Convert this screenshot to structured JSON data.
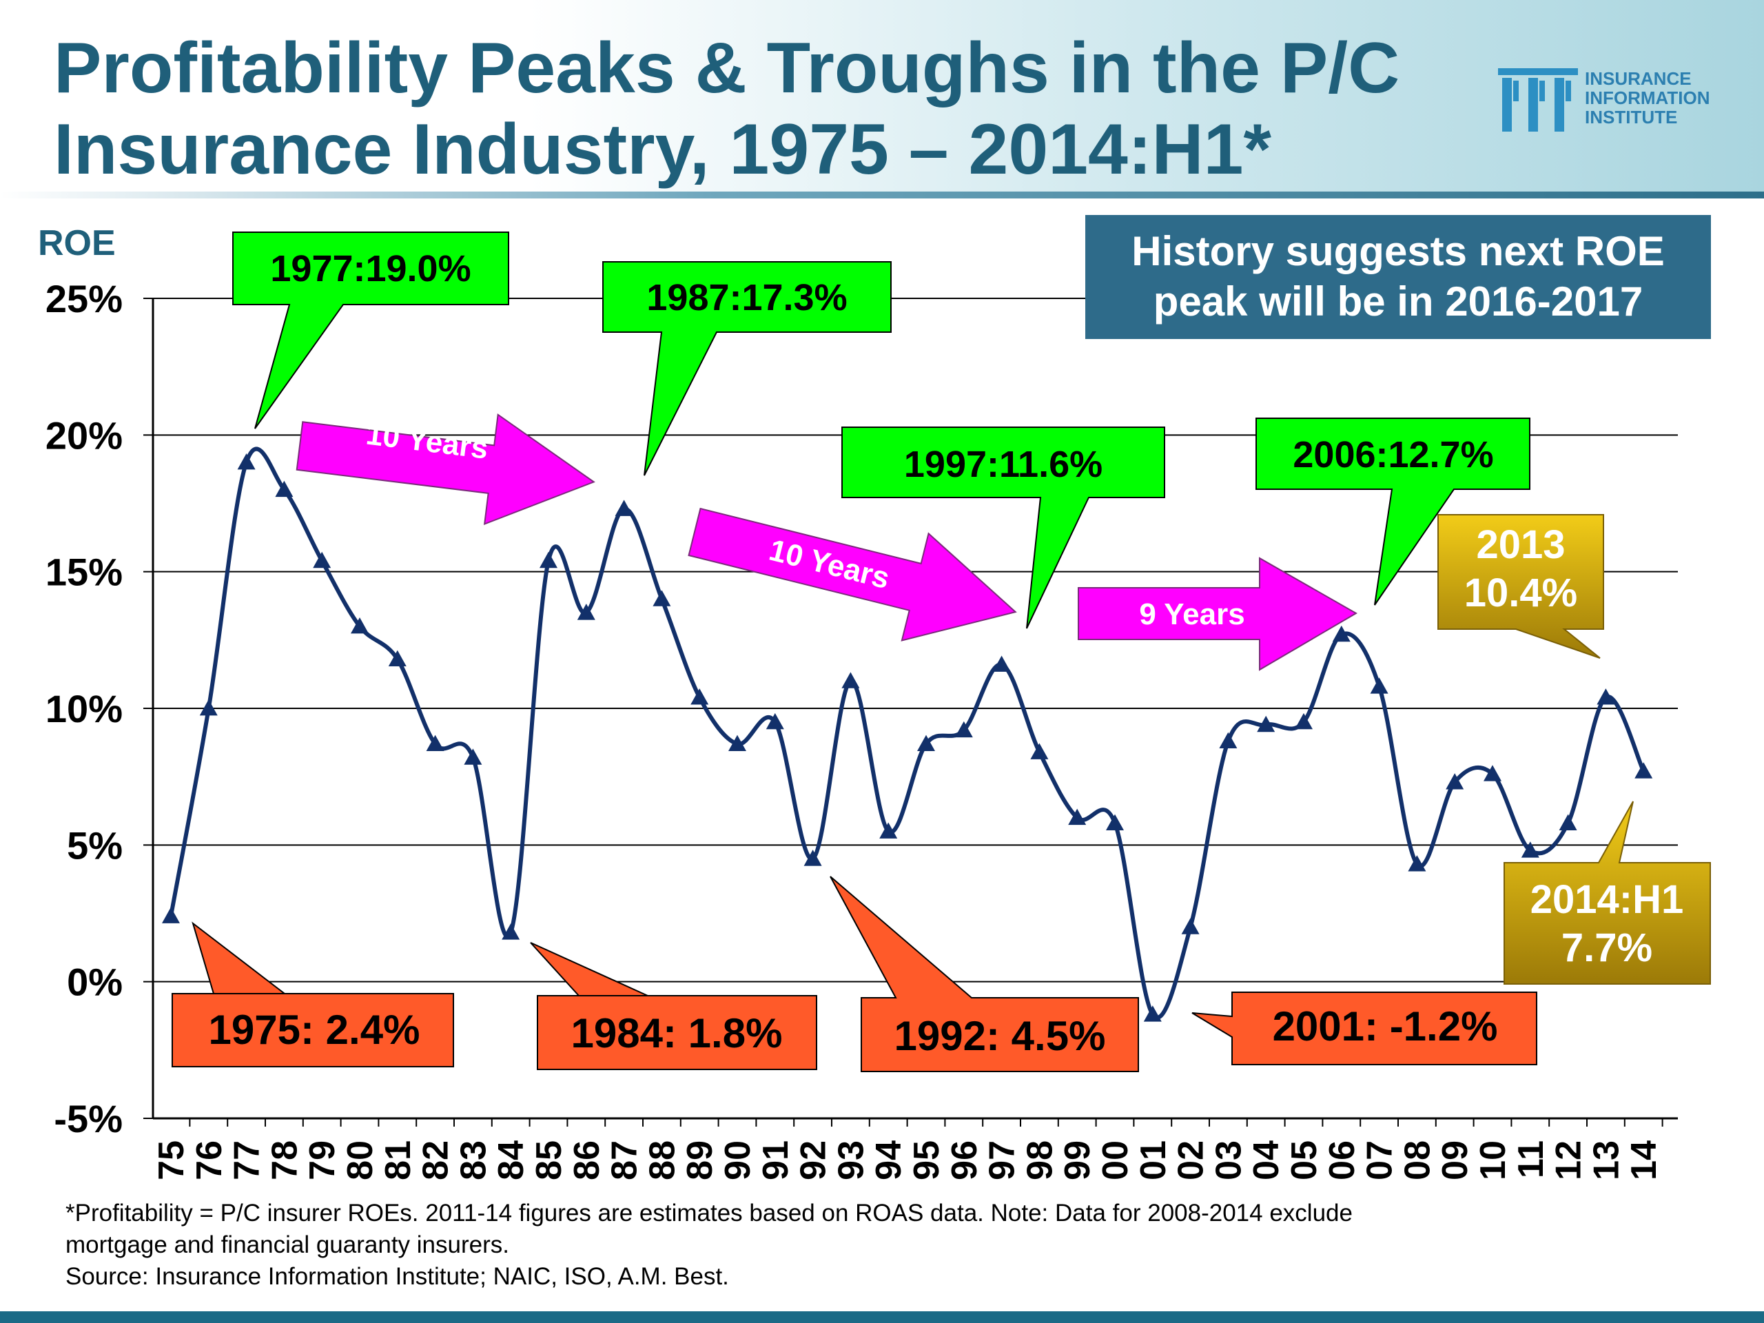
{
  "title": {
    "line1": "Profitability Peaks & Troughs in the P/C",
    "line2": "Insurance Industry, 1975 – 2014:H1*"
  },
  "logo": {
    "line1": "INSURANCE",
    "line2": "INFORMATION",
    "line3": "INSTITUTE"
  },
  "chart_data": {
    "type": "line",
    "ylabel": "ROE",
    "ylim": [
      -5,
      25
    ],
    "yticks": [
      25,
      20,
      15,
      10,
      5,
      0,
      -5
    ],
    "ytick_labels": [
      "25%",
      "20%",
      "15%",
      "10%",
      "5%",
      "0%",
      "-5%"
    ],
    "categories": [
      "75",
      "76",
      "77",
      "78",
      "79",
      "80",
      "81",
      "82",
      "83",
      "84",
      "85",
      "86",
      "87",
      "88",
      "89",
      "90",
      "91",
      "92",
      "93",
      "94",
      "95",
      "96",
      "97",
      "98",
      "99",
      "00",
      "01",
      "02",
      "03",
      "04",
      "05",
      "06",
      "07",
      "08",
      "09",
      "10",
      "11",
      "12",
      "13",
      "14"
    ],
    "values": [
      2.4,
      10.0,
      19.0,
      18.0,
      15.4,
      13.0,
      11.8,
      8.7,
      8.2,
      1.8,
      15.4,
      13.5,
      17.3,
      14.0,
      10.4,
      8.7,
      9.5,
      4.5,
      11.0,
      5.5,
      8.7,
      9.2,
      11.6,
      8.4,
      6.0,
      5.8,
      -1.2,
      2.0,
      8.8,
      9.4,
      9.5,
      12.7,
      10.8,
      4.3,
      7.3,
      7.6,
      4.8,
      5.8,
      10.4,
      7.7
    ],
    "grid": true,
    "line_color": "#12306a"
  },
  "callouts": {
    "peaks": [
      "1977:19.0%",
      "1987:17.3%",
      "1997:11.6%",
      "2006:12.7%"
    ],
    "troughs": [
      "1975: 2.4%",
      "1984: 1.8%",
      "1992: 4.5%",
      "2001: -1.2%"
    ],
    "recent_2013": {
      "line1": "2013",
      "line2": "10.4%"
    },
    "recent_2014": {
      "line1": "2014:H1",
      "line2": "7.7%"
    },
    "arrows": [
      "10 Years",
      "10 Years",
      "9 Years"
    ],
    "history_box": {
      "line1": "History suggests next ROE",
      "line2": "peak will be in 2016-2017"
    }
  },
  "colors": {
    "title": "#1f5f7a",
    "peak": "#00ff00",
    "trough": "#ff5a29",
    "arrow": "#ff00ff",
    "gold": "#c9a008",
    "history_box": "#2e6b8a"
  },
  "footer": {
    "line1": "*Profitability =  P/C insurer ROEs. 2011-14 figures are estimates based on ROAS data.  Note:  Data for 2008-2014 exclude",
    "line2": "mortgage and financial guaranty insurers.",
    "line3": "Source:  Insurance Information Institute; NAIC, ISO, A.M. Best."
  }
}
